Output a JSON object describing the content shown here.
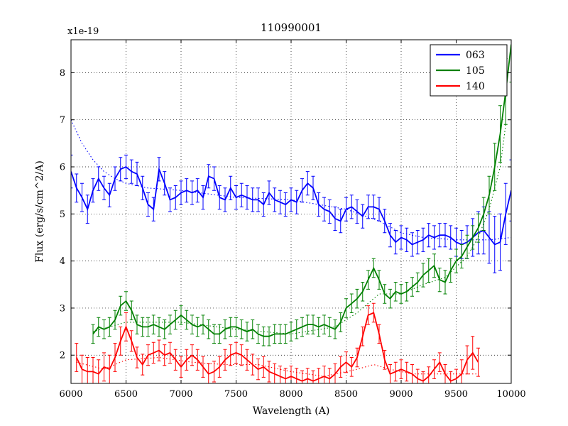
{
  "figure": {
    "title": "110990001",
    "offset_label": "x1e-19",
    "xlabel": "Wavelength (A)",
    "ylabel": "Flux (erg/s/cm^2/A)"
  },
  "chart_data": {
    "type": "line",
    "title": "110990001",
    "xlabel": "Wavelength (A)",
    "ylabel": "Flux (erg/s/cm^2/A)",
    "y_scale_label": "x1e-19",
    "y_unit_scale": "1e-19",
    "xlim": [
      6000,
      10000
    ],
    "ylim": [
      1.4,
      8.7
    ],
    "xticks": [
      6000,
      6500,
      7000,
      7500,
      8000,
      8500,
      9000,
      9500,
      10000
    ],
    "yticks": [
      2,
      3,
      4,
      5,
      6,
      7,
      8
    ],
    "grid": true,
    "grid_style": "dotted",
    "legend": {
      "position": "upper right",
      "entries": [
        {
          "label": "063",
          "color": "#0000ff"
        },
        {
          "label": "105",
          "color": "#008000"
        },
        {
          "label": "140",
          "color": "#ff0000"
        }
      ]
    },
    "series": [
      {
        "name": "063",
        "role": "data",
        "color": "#0000ff",
        "style": "solid",
        "legend": true,
        "x_start": 6000,
        "x_step": 50,
        "y": [
          5.9,
          5.55,
          5.35,
          5.1,
          5.5,
          5.75,
          5.55,
          5.4,
          5.75,
          5.95,
          6.0,
          5.9,
          5.85,
          5.55,
          5.2,
          5.1,
          5.95,
          5.65,
          5.3,
          5.35,
          5.45,
          5.5,
          5.45,
          5.5,
          5.35,
          5.8,
          5.75,
          5.35,
          5.3,
          5.55,
          5.35,
          5.4,
          5.35,
          5.3,
          5.3,
          5.2,
          5.45,
          5.3,
          5.25,
          5.2,
          5.3,
          5.25,
          5.5,
          5.65,
          5.55,
          5.2,
          5.1,
          5.05,
          4.9,
          4.85,
          5.1,
          5.15,
          5.05,
          4.95,
          5.15,
          5.15,
          5.1,
          4.85,
          4.55,
          4.4,
          4.5,
          4.45,
          4.35,
          4.4,
          4.45,
          4.55,
          4.5,
          4.55,
          4.55,
          4.5,
          4.4,
          4.35,
          4.4,
          4.5,
          4.6,
          4.65,
          4.5,
          4.35,
          4.4,
          5.0,
          5.5
        ],
        "yerr": [
          0.35,
          0.3,
          0.3,
          0.3,
          0.25,
          0.25,
          0.25,
          0.25,
          0.25,
          0.25,
          0.25,
          0.25,
          0.25,
          0.25,
          0.25,
          0.25,
          0.25,
          0.25,
          0.25,
          0.25,
          0.25,
          0.25,
          0.25,
          0.25,
          0.25,
          0.25,
          0.25,
          0.25,
          0.25,
          0.25,
          0.25,
          0.25,
          0.25,
          0.25,
          0.25,
          0.25,
          0.25,
          0.25,
          0.25,
          0.25,
          0.25,
          0.25,
          0.25,
          0.25,
          0.25,
          0.25,
          0.25,
          0.25,
          0.25,
          0.25,
          0.25,
          0.25,
          0.25,
          0.25,
          0.25,
          0.25,
          0.25,
          0.25,
          0.25,
          0.25,
          0.25,
          0.25,
          0.25,
          0.25,
          0.25,
          0.25,
          0.25,
          0.25,
          0.25,
          0.25,
          0.3,
          0.3,
          0.35,
          0.4,
          0.45,
          0.5,
          0.55,
          0.6,
          0.6,
          0.65,
          0.65
        ]
      },
      {
        "name": "105",
        "role": "data",
        "color": "#008000",
        "style": "solid",
        "legend": true,
        "x_start": 6200,
        "x_step": 50,
        "y": [
          2.45,
          2.6,
          2.55,
          2.6,
          2.75,
          3.05,
          3.15,
          2.95,
          2.65,
          2.6,
          2.6,
          2.65,
          2.6,
          2.55,
          2.65,
          2.75,
          2.85,
          2.75,
          2.65,
          2.6,
          2.65,
          2.55,
          2.45,
          2.45,
          2.55,
          2.6,
          2.6,
          2.55,
          2.5,
          2.55,
          2.45,
          2.4,
          2.4,
          2.45,
          2.45,
          2.45,
          2.5,
          2.55,
          2.6,
          2.65,
          2.65,
          2.6,
          2.65,
          2.6,
          2.55,
          2.7,
          3.0,
          3.1,
          3.2,
          3.35,
          3.6,
          3.85,
          3.6,
          3.3,
          3.2,
          3.35,
          3.3,
          3.35,
          3.45,
          3.55,
          3.7,
          3.8,
          3.9,
          3.6,
          3.55,
          3.8,
          4.0,
          4.1,
          4.3,
          4.5,
          4.7,
          5.0,
          5.4,
          6.0,
          6.7,
          7.6,
          8.6
        ],
        "yerr": [
          0.2,
          0.2,
          0.2,
          0.2,
          0.2,
          0.2,
          0.2,
          0.2,
          0.2,
          0.2,
          0.2,
          0.2,
          0.2,
          0.2,
          0.2,
          0.2,
          0.2,
          0.2,
          0.2,
          0.2,
          0.2,
          0.2,
          0.2,
          0.2,
          0.2,
          0.2,
          0.2,
          0.2,
          0.2,
          0.2,
          0.2,
          0.2,
          0.2,
          0.2,
          0.2,
          0.2,
          0.2,
          0.2,
          0.2,
          0.2,
          0.2,
          0.2,
          0.2,
          0.2,
          0.2,
          0.2,
          0.2,
          0.2,
          0.2,
          0.2,
          0.2,
          0.2,
          0.2,
          0.2,
          0.2,
          0.2,
          0.2,
          0.2,
          0.2,
          0.2,
          0.25,
          0.25,
          0.25,
          0.25,
          0.25,
          0.25,
          0.25,
          0.25,
          0.25,
          0.25,
          0.3,
          0.35,
          0.4,
          0.5,
          0.6,
          0.7,
          0.8
        ]
      },
      {
        "name": "140",
        "role": "data",
        "color": "#ff0000",
        "style": "solid",
        "legend": true,
        "x_start": 6050,
        "x_step": 50,
        "y": [
          1.95,
          1.7,
          1.65,
          1.65,
          1.6,
          1.75,
          1.7,
          1.95,
          2.3,
          2.6,
          2.3,
          1.95,
          1.8,
          2.0,
          2.05,
          2.1,
          2.0,
          2.05,
          1.9,
          1.75,
          1.9,
          2.0,
          1.9,
          1.75,
          1.6,
          1.65,
          1.75,
          1.9,
          2.0,
          2.05,
          2.0,
          1.9,
          1.8,
          1.7,
          1.75,
          1.65,
          1.6,
          1.55,
          1.5,
          1.55,
          1.5,
          1.45,
          1.5,
          1.45,
          1.5,
          1.55,
          1.5,
          1.6,
          1.75,
          1.85,
          1.75,
          1.95,
          2.4,
          2.85,
          2.9,
          2.45,
          1.9,
          1.6,
          1.65,
          1.7,
          1.65,
          1.6,
          1.5,
          1.45,
          1.55,
          1.7,
          1.85,
          1.6,
          1.45,
          1.5,
          1.6,
          1.9,
          2.05,
          1.85
        ],
        "yerr": [
          0.3,
          0.3,
          0.3,
          0.3,
          0.3,
          0.3,
          0.3,
          0.3,
          0.3,
          0.3,
          0.22,
          0.22,
          0.22,
          0.22,
          0.22,
          0.22,
          0.22,
          0.22,
          0.22,
          0.22,
          0.22,
          0.22,
          0.22,
          0.22,
          0.22,
          0.22,
          0.22,
          0.22,
          0.22,
          0.22,
          0.22,
          0.22,
          0.22,
          0.22,
          0.22,
          0.22,
          0.22,
          0.22,
          0.22,
          0.22,
          0.22,
          0.22,
          0.22,
          0.22,
          0.22,
          0.22,
          0.22,
          0.22,
          0.22,
          0.22,
          0.2,
          0.2,
          0.2,
          0.2,
          0.2,
          0.2,
          0.2,
          0.2,
          0.2,
          0.2,
          0.2,
          0.2,
          0.2,
          0.2,
          0.2,
          0.2,
          0.2,
          0.2,
          0.2,
          0.2,
          0.3,
          0.3,
          0.35,
          0.3
        ]
      },
      {
        "name": "063-model",
        "role": "model",
        "color": "#0000ff",
        "style": "dotted",
        "legend": false,
        "x": [
          6000,
          6100,
          6200,
          6300,
          6400,
          6500,
          6700,
          7000,
          7500,
          8000,
          8500,
          8800,
          9000,
          9200,
          9500,
          9800,
          10000
        ],
        "y": [
          7.0,
          6.5,
          6.15,
          5.9,
          5.75,
          5.65,
          5.55,
          5.5,
          5.35,
          5.3,
          5.1,
          4.85,
          4.6,
          4.5,
          4.45,
          4.45,
          4.5
        ]
      },
      {
        "name": "105-model",
        "role": "model",
        "color": "#008000",
        "style": "dotted",
        "legend": false,
        "x": [
          6200,
          6500,
          7000,
          7500,
          8000,
          8400,
          8600,
          8800,
          9000,
          9200,
          9400,
          9600,
          9700,
          9800,
          9900,
          9950
        ],
        "y": [
          2.5,
          2.7,
          2.7,
          2.55,
          2.45,
          2.6,
          2.9,
          3.3,
          3.3,
          3.5,
          3.65,
          4.1,
          4.5,
          5.1,
          6.0,
          6.9
        ]
      },
      {
        "name": "140-model",
        "role": "model",
        "color": "#ff0000",
        "style": "dotted",
        "legend": false,
        "x": [
          6050,
          6300,
          6500,
          6800,
          7100,
          7400,
          7700,
          8000,
          8300,
          8600,
          8750,
          8900,
          9100,
          9400,
          9700
        ],
        "y": [
          1.85,
          1.7,
          1.9,
          1.95,
          1.85,
          1.8,
          1.8,
          1.65,
          1.55,
          1.7,
          1.8,
          1.7,
          1.6,
          1.6,
          1.6
        ]
      }
    ]
  }
}
